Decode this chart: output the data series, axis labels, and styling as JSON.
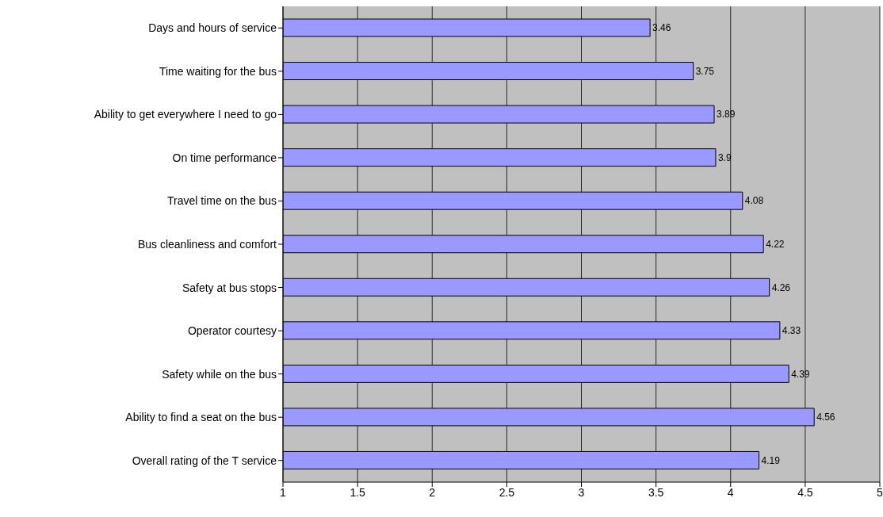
{
  "chart_data": {
    "type": "bar",
    "orientation": "horizontal",
    "categories": [
      "Days and hours of service",
      "Time waiting for the bus",
      "Ability to get everywhere I need to go",
      "On time performance",
      "Travel time on the bus",
      "Bus cleanliness and comfort",
      "Safety at bus stops",
      "Operator courtesy",
      "Safety while on the bus",
      "Ability to find a seat on the bus",
      "Overall rating of the T service"
    ],
    "values": [
      3.46,
      3.75,
      3.89,
      3.9,
      4.08,
      4.22,
      4.26,
      4.33,
      4.39,
      4.56,
      4.19
    ],
    "color": "#9999ff",
    "xlim": [
      1,
      5
    ],
    "xticks": [
      1,
      1.5,
      2,
      2.5,
      3,
      3.5,
      4,
      4.5,
      5
    ],
    "grid": "x",
    "data_labels": true,
    "legend": false
  }
}
